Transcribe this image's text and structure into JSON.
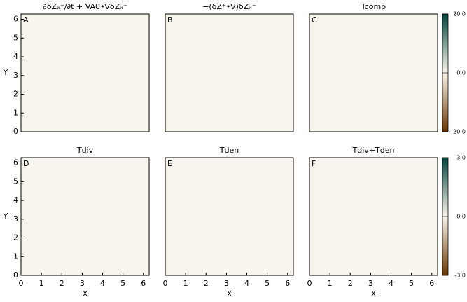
{
  "chart_data": [
    {
      "type": "heatmap",
      "label": "A",
      "title": "∂δZₓ⁻/∂t + VA0•∇δZₓ⁻",
      "xlim": [
        0,
        6.2832
      ],
      "ylim": [
        0,
        6.2832
      ],
      "yticks": [
        0,
        1,
        2,
        3,
        4,
        5,
        6
      ],
      "y_label": "Y"
    },
    {
      "type": "heatmap",
      "label": "B",
      "title": "−(δZ⁺•∇)δZₓ⁻",
      "xlim": [
        0,
        6.2832
      ],
      "ylim": [
        0,
        6.2832
      ]
    },
    {
      "type": "heatmap",
      "label": "C",
      "title": "Tcomp",
      "xlim": [
        0,
        6.2832
      ],
      "ylim": [
        0,
        6.2832
      ],
      "colorbar": {
        "clim": [
          -20,
          20
        ],
        "colormap": [
          "#6b3500",
          "#fbf6ea",
          "#00443d"
        ],
        "ticks": [
          {
            "value": 20,
            "label": "20.0"
          },
          {
            "value": 0,
            "label": "0.0"
          },
          {
            "value": -20,
            "label": "-20.0"
          }
        ]
      }
    },
    {
      "type": "heatmap",
      "label": "D",
      "title": "Tdiv",
      "xlim": [
        0,
        6.2832
      ],
      "ylim": [
        0,
        6.2832
      ],
      "xticks": [
        0,
        1,
        2,
        3,
        4,
        5,
        6
      ],
      "yticks": [
        0,
        1,
        2,
        3,
        4,
        5,
        6
      ],
      "x_label": "X",
      "y_label": "Y"
    },
    {
      "type": "heatmap",
      "label": "E",
      "title": "Tden",
      "xlim": [
        0,
        6.2832
      ],
      "ylim": [
        0,
        6.2832
      ],
      "xticks": [
        0,
        1,
        2,
        3,
        4,
        5,
        6
      ],
      "x_label": "X"
    },
    {
      "type": "heatmap",
      "label": "F",
      "title": "Tdiv+Tden",
      "xlim": [
        0,
        6.2832
      ],
      "ylim": [
        0,
        6.2832
      ],
      "xticks": [
        0,
        1,
        2,
        3,
        4,
        5,
        6
      ],
      "x_label": "X",
      "colorbar": {
        "clim": [
          -3,
          3
        ],
        "colormap": [
          "#6b3500",
          "#fbf6ea",
          "#00443d"
        ],
        "ticks": [
          {
            "value": 3,
            "label": "3.0"
          },
          {
            "value": 0,
            "label": "0.0"
          },
          {
            "value": -3,
            "label": "-3.0"
          }
        ]
      }
    }
  ]
}
